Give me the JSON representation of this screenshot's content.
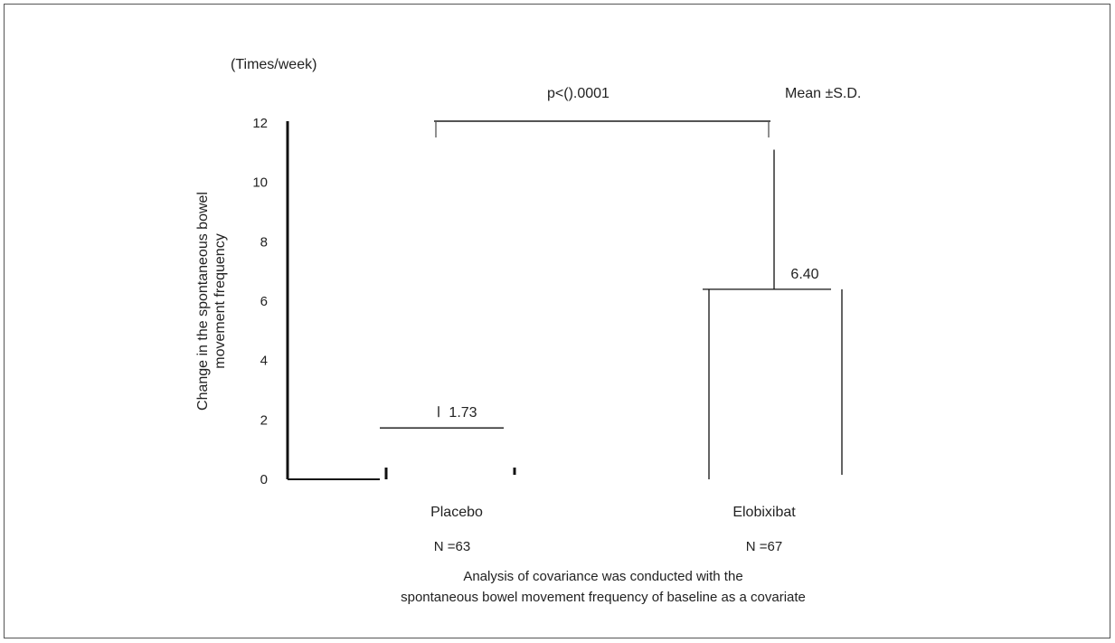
{
  "chart_data": {
    "type": "bar",
    "unit_label": "(Times/week)",
    "ylabel_line1": "Change in the spontaneous bowel",
    "ylabel_line2": "movement frequency",
    "ylim": [
      0,
      12
    ],
    "yticks": [
      0,
      2,
      4,
      6,
      8,
      10,
      12
    ],
    "categories": [
      {
        "label": "Placebo",
        "n_label": "N =63",
        "mean": 1.73,
        "sd_upper": 1.73,
        "value_label": "1.73"
      },
      {
        "label": "Elobixibat",
        "n_label": "N =67",
        "mean": 6.4,
        "sd_upper": 11.1,
        "value_label": "6.40"
      }
    ],
    "significance": "p<().0001",
    "stat_legend": "Mean ±S.D.",
    "footnote_line1": "Analysis of covariance was conducted with the",
    "footnote_line2": "spontaneous bowel movement frequency of baseline as a covariate"
  }
}
